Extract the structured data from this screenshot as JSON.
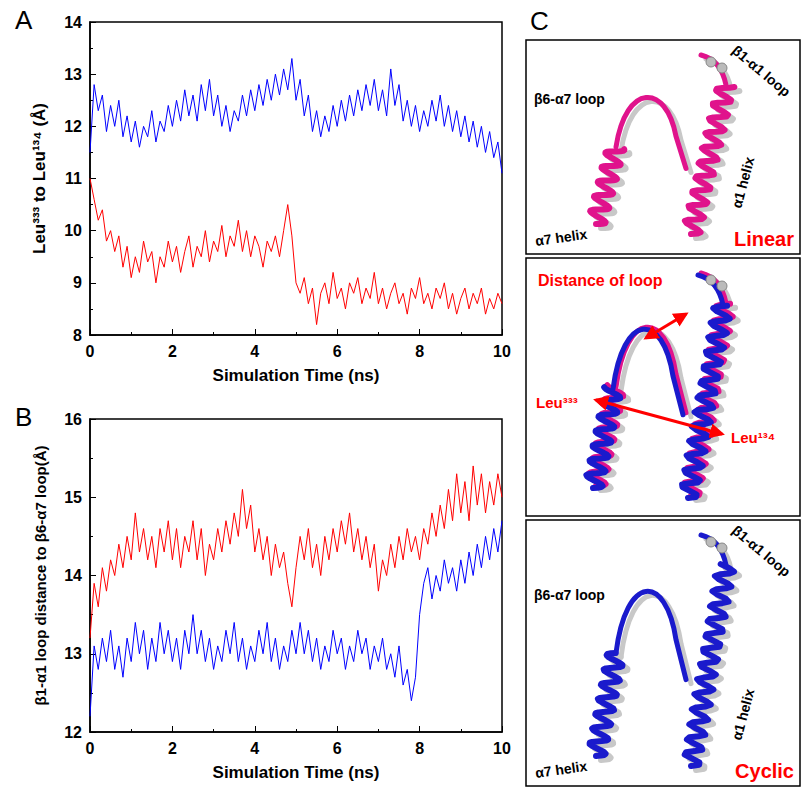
{
  "chart_data": [
    {
      "panel": "A",
      "type": "line",
      "x_label": "Simulation Time (ns)",
      "y_label": "Leu³³³ to Leu¹³⁴ (Å)",
      "x": [
        0,
        0.1,
        0.2,
        0.3,
        0.4,
        0.5,
        0.6,
        0.7,
        0.8,
        0.9,
        1,
        1.1,
        1.2,
        1.3,
        1.4,
        1.5,
        1.6,
        1.7,
        1.8,
        1.9,
        2,
        2.1,
        2.2,
        2.3,
        2.4,
        2.5,
        2.6,
        2.7,
        2.8,
        2.9,
        3,
        3.1,
        3.2,
        3.3,
        3.4,
        3.5,
        3.6,
        3.7,
        3.8,
        3.9,
        4,
        4.1,
        4.2,
        4.3,
        4.4,
        4.5,
        4.6,
        4.7,
        4.8,
        4.9,
        5,
        5.1,
        5.2,
        5.3,
        5.4,
        5.5,
        5.6,
        5.7,
        5.8,
        5.9,
        6,
        6.1,
        6.2,
        6.3,
        6.4,
        6.5,
        6.6,
        6.7,
        6.8,
        6.9,
        7,
        7.1,
        7.2,
        7.3,
        7.4,
        7.5,
        7.6,
        7.7,
        7.8,
        7.9,
        8,
        8.1,
        8.2,
        8.3,
        8.4,
        8.5,
        8.6,
        8.7,
        8.8,
        8.9,
        9,
        9.1,
        9.2,
        9.3,
        9.4,
        9.5,
        9.6,
        9.7,
        9.8,
        9.9,
        10
      ],
      "series": [
        {
          "color": "#0000ff",
          "values": [
            11.5,
            12.8,
            12.3,
            12.6,
            11.9,
            12.4,
            12.0,
            12.5,
            11.8,
            12.2,
            11.7,
            12.1,
            11.6,
            12.0,
            11.8,
            12.3,
            11.7,
            12.1,
            11.9,
            12.4,
            12.0,
            12.5,
            12.1,
            12.7,
            12.2,
            12.6,
            12.1,
            12.8,
            12.3,
            12.9,
            12.2,
            12.6,
            12.0,
            12.4,
            11.9,
            12.3,
            12.1,
            12.6,
            12.2,
            12.7,
            12.3,
            12.8,
            12.4,
            12.9,
            12.5,
            13.0,
            12.6,
            13.1,
            12.7,
            13.3,
            12.5,
            12.9,
            12.2,
            12.6,
            11.9,
            12.3,
            11.8,
            12.2,
            11.9,
            12.4,
            12.0,
            12.5,
            12.1,
            12.6,
            12.2,
            12.7,
            12.3,
            12.8,
            12.4,
            12.9,
            12.3,
            12.7,
            12.2,
            13.1,
            12.4,
            12.8,
            12.1,
            12.5,
            12.0,
            12.4,
            11.9,
            12.3,
            12.0,
            12.5,
            12.1,
            12.6,
            12.0,
            12.4,
            11.9,
            12.3,
            11.8,
            12.2,
            11.7,
            12.1,
            11.6,
            12.0,
            11.5,
            11.9,
            11.4,
            11.7,
            11.1
          ]
        },
        {
          "color": "#ff0000",
          "values": [
            11.0,
            10.6,
            10.2,
            10.4,
            9.8,
            10.0,
            9.6,
            9.9,
            9.3,
            9.7,
            9.1,
            9.5,
            9.2,
            9.8,
            9.4,
            9.6,
            9.0,
            9.5,
            9.3,
            9.8,
            9.4,
            9.7,
            9.2,
            9.6,
            9.9,
            9.3,
            9.7,
            9.5,
            10.0,
            9.4,
            9.8,
            9.6,
            10.1,
            9.5,
            9.9,
            9.7,
            10.2,
            9.6,
            10.0,
            9.5,
            9.9,
            9.7,
            9.3,
            9.8,
            9.6,
            9.9,
            9.5,
            10.0,
            10.5,
            9.9,
            9.0,
            8.8,
            9.1,
            8.6,
            8.9,
            8.2,
            8.8,
            9.0,
            8.6,
            9.2,
            8.7,
            8.9,
            8.5,
            9.0,
            8.8,
            9.1,
            8.6,
            8.9,
            8.7,
            9.2,
            8.6,
            8.9,
            8.5,
            8.8,
            9.0,
            8.6,
            8.8,
            8.4,
            8.9,
            8.7,
            9.1,
            8.6,
            8.8,
            8.5,
            8.9,
            8.7,
            9.0,
            8.5,
            8.8,
            8.4,
            8.7,
            8.9,
            8.5,
            8.8,
            8.6,
            8.9,
            8.4,
            8.7,
            8.5,
            8.8,
            8.6
          ]
        }
      ],
      "xlim": [
        0,
        10
      ],
      "xticks": [
        0,
        2,
        4,
        6,
        8,
        10
      ],
      "ylim": [
        8,
        14
      ],
      "yticks": [
        8,
        9,
        10,
        11,
        12,
        13,
        14
      ],
      "grid": false
    },
    {
      "panel": "B",
      "type": "line",
      "x_label": "Simulation Time (ns)",
      "y_label": "β1-α1 loop distance to β6-α7 loop(Å)",
      "x": [
        0,
        0.1,
        0.2,
        0.3,
        0.4,
        0.5,
        0.6,
        0.7,
        0.8,
        0.9,
        1,
        1.1,
        1.2,
        1.3,
        1.4,
        1.5,
        1.6,
        1.7,
        1.8,
        1.9,
        2,
        2.1,
        2.2,
        2.3,
        2.4,
        2.5,
        2.6,
        2.7,
        2.8,
        2.9,
        3,
        3.1,
        3.2,
        3.3,
        3.4,
        3.5,
        3.6,
        3.7,
        3.8,
        3.9,
        4,
        4.1,
        4.2,
        4.3,
        4.4,
        4.5,
        4.6,
        4.7,
        4.8,
        4.9,
        5,
        5.1,
        5.2,
        5.3,
        5.4,
        5.5,
        5.6,
        5.7,
        5.8,
        5.9,
        6,
        6.1,
        6.2,
        6.3,
        6.4,
        6.5,
        6.6,
        6.7,
        6.8,
        6.9,
        7,
        7.1,
        7.2,
        7.3,
        7.4,
        7.5,
        7.6,
        7.7,
        7.8,
        7.9,
        8,
        8.1,
        8.2,
        8.3,
        8.4,
        8.5,
        8.6,
        8.7,
        8.8,
        8.9,
        9,
        9.1,
        9.2,
        9.3,
        9.4,
        9.5,
        9.6,
        9.7,
        9.8,
        9.9,
        10
      ],
      "series": [
        {
          "color": "#ff0000",
          "values": [
            13.2,
            13.9,
            13.6,
            14.1,
            13.8,
            14.2,
            14.0,
            14.4,
            14.1,
            14.5,
            14.2,
            14.8,
            14.3,
            14.6,
            14.2,
            14.5,
            14.1,
            14.6,
            14.3,
            14.7,
            14.2,
            14.6,
            14.1,
            14.5,
            14.3,
            14.7,
            14.2,
            14.6,
            14.0,
            14.4,
            14.2,
            14.6,
            14.3,
            14.7,
            14.4,
            14.8,
            14.5,
            15.1,
            14.6,
            14.9,
            14.3,
            14.6,
            14.2,
            14.5,
            14.0,
            14.4,
            14.1,
            14.3,
            13.9,
            13.6,
            14.1,
            14.5,
            14.2,
            14.6,
            14.1,
            14.4,
            14.0,
            14.5,
            14.2,
            14.6,
            14.3,
            14.7,
            14.4,
            14.8,
            14.3,
            14.6,
            14.2,
            14.5,
            14.1,
            14.4,
            13.8,
            14.2,
            14.0,
            14.4,
            14.1,
            14.5,
            14.2,
            14.6,
            14.3,
            14.5,
            14.2,
            14.6,
            14.4,
            14.8,
            14.5,
            14.9,
            14.6,
            15.1,
            14.7,
            15.3,
            14.8,
            15.2,
            14.7,
            15.4,
            14.9,
            15.3,
            14.8,
            15.2,
            14.9,
            15.3,
            15.0
          ]
        },
        {
          "color": "#0000ff",
          "values": [
            12.2,
            13.1,
            12.8,
            13.2,
            12.9,
            13.3,
            12.8,
            13.1,
            12.7,
            13.2,
            12.9,
            13.4,
            13.0,
            13.3,
            12.8,
            13.2,
            12.9,
            13.4,
            13.0,
            13.3,
            12.9,
            13.2,
            12.8,
            13.3,
            13.0,
            13.5,
            13.0,
            13.3,
            12.9,
            13.2,
            12.8,
            13.1,
            12.9,
            13.3,
            13.0,
            13.4,
            12.9,
            13.2,
            12.8,
            13.1,
            12.9,
            13.3,
            13.0,
            13.4,
            12.9,
            13.2,
            12.8,
            13.1,
            12.9,
            13.3,
            13.0,
            13.4,
            13.0,
            13.3,
            12.9,
            13.2,
            12.8,
            13.1,
            12.9,
            13.3,
            13.0,
            13.2,
            12.8,
            13.1,
            12.9,
            13.3,
            13.0,
            13.2,
            12.8,
            13.1,
            12.9,
            13.2,
            12.8,
            13.0,
            12.7,
            13.1,
            12.6,
            12.8,
            12.4,
            12.7,
            13.5,
            13.9,
            14.1,
            13.7,
            14.0,
            13.8,
            14.2,
            13.9,
            14.1,
            13.8,
            14.2,
            13.9,
            14.3,
            14.0,
            14.4,
            14.1,
            14.5,
            14.2,
            14.6,
            14.3,
            14.7
          ]
        }
      ],
      "xlim": [
        0,
        10
      ],
      "xticks": [
        0,
        2,
        4,
        6,
        8,
        10
      ],
      "ylim": [
        12,
        16
      ],
      "yticks": [
        12,
        13,
        14,
        15,
        16
      ],
      "grid": false
    }
  ],
  "structure_panel": {
    "panel": "C",
    "views": [
      {
        "labels": [
          "β1-α1 loop",
          "β6-α7 loop",
          "α7 helix",
          "α1 helix"
        ],
        "caption": "Linear"
      },
      {
        "annotation": "Distance of loop",
        "residues": [
          "Leu³³³",
          "Leu¹³⁴"
        ]
      },
      {
        "labels": [
          "β1-α1 loop",
          "β6-α7 loop",
          "α7 helix",
          "α1 helix"
        ],
        "caption": "Cyclic"
      }
    ]
  }
}
